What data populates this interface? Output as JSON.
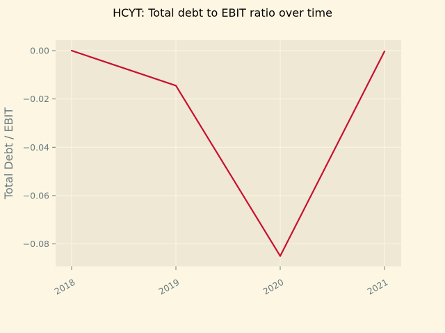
{
  "chart_data": {
    "type": "line",
    "title": "HCYT: Total debt to EBIT ratio over time",
    "xlabel": "",
    "ylabel": "Total Debt / EBIT",
    "categories": [
      "2018",
      "2019",
      "2020",
      "2021"
    ],
    "series": [
      {
        "values": [
          0.0,
          -0.0145,
          -0.085,
          -0.0003
        ]
      }
    ],
    "y_ticks": [
      0.0,
      -0.02,
      -0.04,
      -0.06,
      -0.08
    ],
    "y_tick_labels": [
      "0.00",
      "−0.02",
      "−0.04",
      "−0.06",
      "−0.08"
    ],
    "ylim": [
      -0.0893,
      0.0043
    ],
    "grid": true,
    "colors": {
      "background": "#fdf6e3",
      "plot_area": "#eee8d5",
      "grid": "#fdf6e3",
      "line": "#c8102e",
      "tick_text": "#6b7b7f",
      "title_text": "#000000"
    }
  }
}
